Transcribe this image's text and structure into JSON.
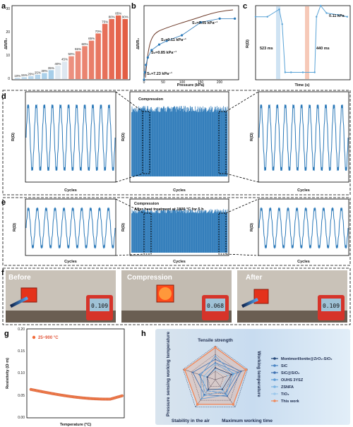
{
  "panel_labels": [
    "a",
    "b",
    "c",
    "d",
    "e",
    "f",
    "g",
    "h"
  ],
  "colors": {
    "blue": "#2a78b8",
    "light_blue": "#5aa3d6",
    "red": "#e2553a",
    "orange": "#ef7e4d",
    "photo_bg": "#2a2a2a",
    "h_bg": "#cfe0f1"
  },
  "panel_a": {
    "ylabel": "ΔR/R₀",
    "percent_labels": [
      "10%",
      "15%",
      "20%",
      "25%",
      "30%",
      "35%",
      "40%",
      "45%",
      "50%",
      "55%",
      "60%",
      "65%",
      "70%",
      "75%",
      "80%",
      "85%",
      "90%"
    ]
  },
  "panel_b": {
    "xlabel": "Pressure (kPa)",
    "ylabel": "ΔR/R₀",
    "annotations": [
      "S₁=7.23 kPa⁻¹",
      "S₂=0.85 kPa⁻¹",
      "S₃=0.11 kPa⁻¹",
      "S₄=0.05 kPa⁻¹"
    ]
  },
  "panel_c": {
    "xlabel": "Time (s)",
    "ylabel": "R(Ω)",
    "annotations": [
      "0.11 kPa",
      "523 ms",
      "440 ms"
    ]
  },
  "panel_d": {
    "title": "Compression",
    "xlabel": "Cycles",
    "ylabel": "R(Ω)"
  },
  "panel_e": {
    "title": "Compression",
    "subtitle": "After heat treatment at 1800 °C for 5 h",
    "xlabel": "Cycles",
    "ylabel": "R(Ω)"
  },
  "panel_f": {
    "photo_labels": [
      "Before",
      "Compression",
      "After"
    ],
    "meter_readings": [
      "0.109",
      "0.068",
      "0.109"
    ]
  },
  "panel_g": {
    "legend": "25~900 °C",
    "xlabel": "Temperature (°C)",
    "ylabel": "Resistivity (Ω·m)"
  },
  "panel_h": {
    "axes": [
      "Tensile strength",
      "Working temperature",
      "Maximum working time",
      "Stability in the air",
      "Pressure sensing working temperature"
    ],
    "legend": [
      "Montmorillonite@ZrO₂-SiO₂",
      "SiC",
      "SiC@SiO₂",
      "OUHS 3YSZ",
      "ZSNFA",
      "TiO₂",
      "This work"
    ]
  },
  "chart_data": [
    {
      "panel": "a",
      "type": "bar",
      "categories": [
        "10%",
        "15%",
        "20%",
        "25%",
        "30%",
        "35%",
        "40%",
        "45%",
        "50%",
        "55%",
        "60%",
        "65%",
        "70%",
        "75%",
        "80%",
        "85%",
        "90%"
      ],
      "values": [
        0.5,
        0.8,
        1.2,
        1.8,
        2.5,
        3.7,
        5.5,
        7.3,
        9.5,
        11.6,
        13.7,
        16,
        19,
        23,
        25,
        26.5,
        25
      ],
      "ylim": [
        0,
        30
      ]
    },
    {
      "panel": "b",
      "type": "line",
      "x": [
        0,
        2,
        5,
        10,
        20,
        40,
        60,
        100,
        150,
        200,
        240
      ],
      "values": [
        0,
        4,
        8,
        12,
        16,
        19,
        21,
        24,
        31,
        33,
        33
      ],
      "xlim": [
        0,
        250
      ],
      "ylim": [
        0,
        40
      ]
    },
    {
      "panel": "c",
      "type": "line",
      "x": [
        -2,
        0,
        2,
        2.5,
        3,
        4,
        6,
        8,
        8.3,
        9,
        10,
        12,
        13.5
      ],
      "values": [
        2200,
        2200,
        2400,
        2000,
        700,
        700,
        700,
        700,
        2200,
        2500,
        2300,
        2250,
        2200
      ],
      "xlim": [
        -2,
        14
      ],
      "ylim": [
        500,
        2500
      ]
    },
    {
      "panel": "g",
      "type": "scatter",
      "x": [
        25,
        100,
        200,
        300,
        400,
        500,
        600,
        700,
        800,
        900
      ],
      "values": [
        0.065,
        0.062,
        0.058,
        0.054,
        0.051,
        0.048,
        0.046,
        0.044,
        0.042,
        0.05
      ],
      "xlim": [
        0,
        900
      ],
      "ylim": [
        0,
        0.2
      ]
    },
    {
      "panel": "h",
      "type": "radar",
      "axes": [
        "Tensile strength",
        "Working temperature",
        "Maximum working time",
        "Stability in the air",
        "Pressure sensing working temperature"
      ],
      "series": [
        {
          "name": "This work",
          "values": [
            0.95,
            0.95,
            0.9,
            0.9,
            0.95
          ]
        },
        {
          "name": "SiC@SiO₂",
          "values": [
            0.6,
            0.8,
            0.6,
            0.55,
            0.7
          ]
        },
        {
          "name": "SiC",
          "values": [
            0.5,
            0.7,
            0.5,
            0.4,
            0.5
          ]
        },
        {
          "name": "OUHS 3YSZ",
          "values": [
            0.7,
            0.55,
            0.55,
            0.7,
            0.45
          ]
        },
        {
          "name": "ZSNFA",
          "values": [
            0.45,
            0.6,
            0.4,
            0.6,
            0.35
          ]
        },
        {
          "name": "TiO₂",
          "values": [
            0.3,
            0.4,
            0.3,
            0.5,
            0.3
          ]
        },
        {
          "name": "Montmorillonite@ZrO₂-SiO₂",
          "values": [
            0.35,
            0.5,
            0.35,
            0.35,
            0.25
          ]
        }
      ]
    }
  ]
}
